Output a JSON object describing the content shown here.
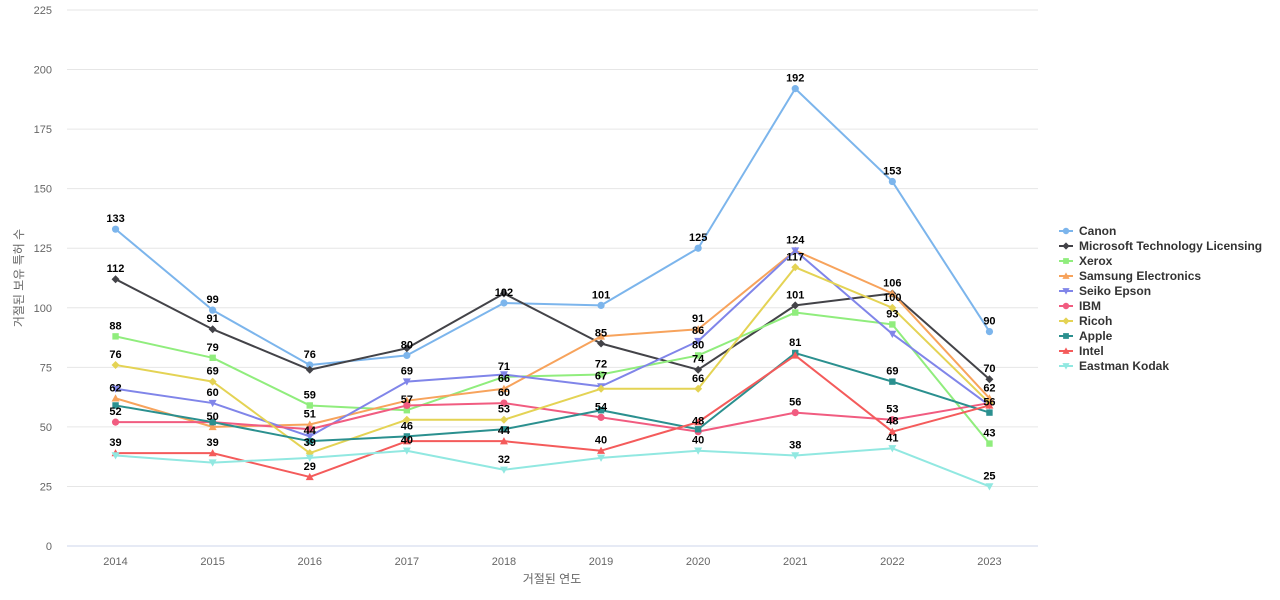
{
  "chart_data": {
    "type": "line",
    "xlabel": "거절된 연도",
    "ylabel": "거절된 보유 특허 수",
    "ylim": [
      0,
      225
    ],
    "yticks": [
      0,
      25,
      50,
      75,
      100,
      125,
      150,
      175,
      200,
      225
    ],
    "grid": true,
    "legend_position": "right",
    "categories": [
      "2014",
      "2015",
      "2016",
      "2017",
      "2018",
      "2019",
      "2020",
      "2021",
      "2022",
      "2023"
    ],
    "series": [
      {
        "name": "Canon",
        "color": "#7cb5ec",
        "marker": "circle",
        "values": [
          133,
          99,
          76,
          80,
          102,
          101,
          125,
          192,
          153,
          90
        ]
      },
      {
        "name": "Microsoft Technology Licensing",
        "color": "#434348",
        "marker": "diamond",
        "values": [
          112,
          91,
          74,
          83,
          106,
          85,
          74,
          101,
          106,
          70
        ]
      },
      {
        "name": "Xerox",
        "color": "#90ed7d",
        "marker": "square",
        "values": [
          88,
          79,
          59,
          57,
          71,
          72,
          80,
          98,
          93,
          43
        ]
      },
      {
        "name": "Samsung Electronics",
        "color": "#f7a35c",
        "marker": "triangle",
        "values": [
          62,
          50,
          51,
          61,
          66,
          88,
          91,
          124,
          106,
          62
        ]
      },
      {
        "name": "Seiko Epson",
        "color": "#8085e9",
        "marker": "triangle-down",
        "values": [
          66,
          60,
          46,
          69,
          72,
          67,
          86,
          124,
          89,
          59
        ]
      },
      {
        "name": "IBM",
        "color": "#f15c80",
        "marker": "circle",
        "values": [
          52,
          52,
          49,
          59,
          60,
          54,
          48,
          56,
          53,
          60
        ]
      },
      {
        "name": "Ricoh",
        "color": "#e4d354",
        "marker": "diamond",
        "values": [
          76,
          69,
          39,
          53,
          53,
          66,
          66,
          117,
          100,
          60
        ]
      },
      {
        "name": "Apple",
        "color": "#2b908f",
        "marker": "square",
        "values": [
          59,
          52,
          44,
          46,
          49,
          57,
          49,
          81,
          69,
          56
        ]
      },
      {
        "name": "Intel",
        "color": "#f45b5b",
        "marker": "triangle",
        "values": [
          39,
          39,
          29,
          44,
          44,
          40,
          52,
          80,
          48,
          59
        ]
      },
      {
        "name": "Eastman Kodak",
        "color": "#91e8e1",
        "marker": "triangle-down",
        "values": [
          38,
          35,
          37,
          40,
          32,
          37,
          40,
          38,
          41,
          25
        ]
      }
    ],
    "data_labels": [
      {
        "text": "133",
        "x": "2014",
        "y": 133
      },
      {
        "text": "112",
        "x": "2014",
        "y": 112
      },
      {
        "text": "88",
        "x": "2014",
        "y": 88
      },
      {
        "text": "76",
        "x": "2014",
        "y": 76
      },
      {
        "text": "62",
        "x": "2014",
        "y": 62
      },
      {
        "text": "52",
        "x": "2014",
        "y": 52
      },
      {
        "text": "39",
        "x": "2014",
        "y": 39
      },
      {
        "text": "99",
        "x": "2015",
        "y": 99
      },
      {
        "text": "91",
        "x": "2015",
        "y": 91
      },
      {
        "text": "79",
        "x": "2015",
        "y": 79
      },
      {
        "text": "69",
        "x": "2015",
        "y": 69
      },
      {
        "text": "60",
        "x": "2015",
        "y": 60
      },
      {
        "text": "50",
        "x": "2015",
        "y": 50
      },
      {
        "text": "39",
        "x": "2015",
        "y": 39
      },
      {
        "text": "76",
        "x": "2016",
        "y": 76
      },
      {
        "text": "59",
        "x": "2016",
        "y": 59
      },
      {
        "text": "51",
        "x": "2016",
        "y": 51
      },
      {
        "text": "44",
        "x": "2016",
        "y": 44
      },
      {
        "text": "39",
        "x": "2016",
        "y": 39
      },
      {
        "text": "29",
        "x": "2016",
        "y": 29
      },
      {
        "text": "80",
        "x": "2017",
        "y": 80
      },
      {
        "text": "69",
        "x": "2017",
        "y": 69
      },
      {
        "text": "57",
        "x": "2017",
        "y": 57
      },
      {
        "text": "46",
        "x": "2017",
        "y": 46
      },
      {
        "text": "40",
        "x": "2017",
        "y": 40
      },
      {
        "text": "102",
        "x": "2018",
        "y": 102
      },
      {
        "text": "71",
        "x": "2018",
        "y": 71
      },
      {
        "text": "66",
        "x": "2018",
        "y": 66
      },
      {
        "text": "60",
        "x": "2018",
        "y": 60
      },
      {
        "text": "53",
        "x": "2018",
        "y": 53
      },
      {
        "text": "44",
        "x": "2018",
        "y": 44
      },
      {
        "text": "32",
        "x": "2018",
        "y": 32
      },
      {
        "text": "101",
        "x": "2019",
        "y": 101
      },
      {
        "text": "85",
        "x": "2019",
        "y": 85
      },
      {
        "text": "72",
        "x": "2019",
        "y": 72
      },
      {
        "text": "67",
        "x": "2019",
        "y": 67
      },
      {
        "text": "54",
        "x": "2019",
        "y": 54
      },
      {
        "text": "40",
        "x": "2019",
        "y": 40
      },
      {
        "text": "125",
        "x": "2020",
        "y": 125
      },
      {
        "text": "91",
        "x": "2020",
        "y": 91
      },
      {
        "text": "86",
        "x": "2020",
        "y": 86
      },
      {
        "text": "80",
        "x": "2020",
        "y": 80
      },
      {
        "text": "74",
        "x": "2020",
        "y": 74
      },
      {
        "text": "66",
        "x": "2020",
        "y": 66
      },
      {
        "text": "48",
        "x": "2020",
        "y": 48
      },
      {
        "text": "40",
        "x": "2020",
        "y": 40
      },
      {
        "text": "192",
        "x": "2021",
        "y": 192
      },
      {
        "text": "124",
        "x": "2021",
        "y": 124
      },
      {
        "text": "117",
        "x": "2021",
        "y": 117
      },
      {
        "text": "101",
        "x": "2021",
        "y": 101
      },
      {
        "text": "81",
        "x": "2021",
        "y": 81
      },
      {
        "text": "56",
        "x": "2021",
        "y": 56
      },
      {
        "text": "38",
        "x": "2021",
        "y": 38
      },
      {
        "text": "153",
        "x": "2022",
        "y": 153
      },
      {
        "text": "106",
        "x": "2022",
        "y": 106
      },
      {
        "text": "100",
        "x": "2022",
        "y": 100
      },
      {
        "text": "93",
        "x": "2022",
        "y": 93
      },
      {
        "text": "69",
        "x": "2022",
        "y": 69
      },
      {
        "text": "53",
        "x": "2022",
        "y": 53
      },
      {
        "text": "48",
        "x": "2022",
        "y": 48
      },
      {
        "text": "41",
        "x": "2022",
        "y": 41
      },
      {
        "text": "90",
        "x": "2023",
        "y": 90
      },
      {
        "text": "70",
        "x": "2023",
        "y": 70
      },
      {
        "text": "62",
        "x": "2023",
        "y": 62
      },
      {
        "text": "56",
        "x": "2023",
        "y": 56
      },
      {
        "text": "43",
        "x": "2023",
        "y": 43
      },
      {
        "text": "25",
        "x": "2023",
        "y": 25
      }
    ]
  }
}
